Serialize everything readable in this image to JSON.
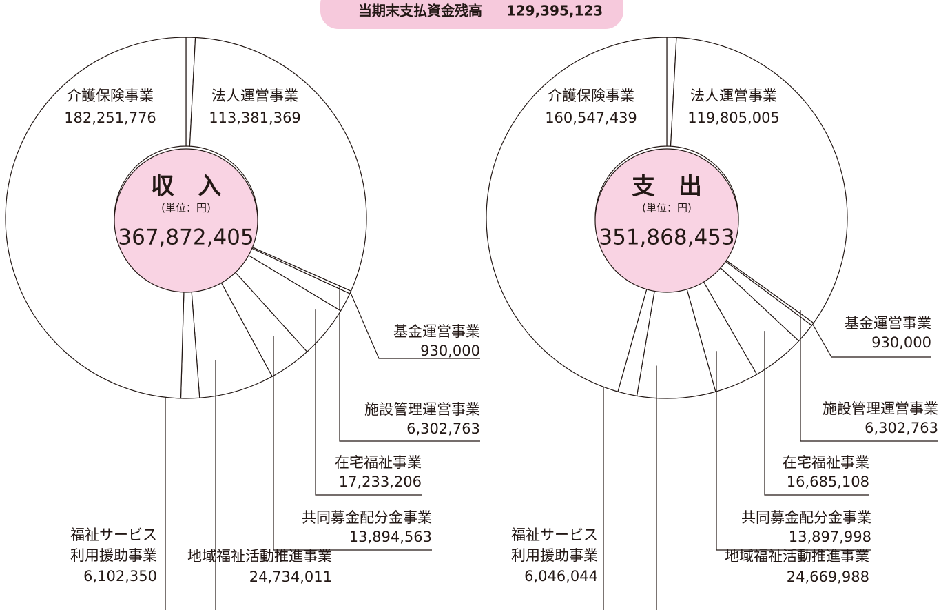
{
  "balance": {
    "label": "当期末支払資金残高",
    "value": "129,395,123"
  },
  "chart_data": [
    {
      "type": "donut",
      "title": "収　入",
      "unit": "(単位：円)",
      "total": "367,872,405",
      "categories": [
        null,
        "法人運営事業",
        "基金運営事業",
        "施設管理運営事業",
        "在宅福祉事業",
        "共同募金配分金事業",
        "地域福祉活動推進事業",
        "福祉サービス利用援助事業",
        "介護保険事業"
      ],
      "values": [
        3042367,
        113381369,
        930000,
        6302763,
        17233206,
        13894563,
        24734011,
        6102350,
        182251776
      ],
      "value_labels": [
        null,
        "113,381,369",
        "930,000",
        "6,302,763",
        "17,233,206",
        "13,894,563",
        "24,734,011",
        "6,102,350",
        "182,251,776"
      ]
    },
    {
      "type": "donut",
      "title": "支　出",
      "unit": "(単位：円)",
      "total": "351,868,453",
      "categories": [
        null,
        "法人運営事業",
        "基金運営事業",
        "施設管理運営事業",
        "在宅福祉事業",
        "共同募金配分金事業",
        "地域福祉活動推進事業",
        "福祉サービス利用援助事業",
        "介護保険事業"
      ],
      "values": [
        2984108,
        119805005,
        930000,
        6302763,
        16685108,
        13897998,
        24669988,
        6046044,
        160547439
      ],
      "value_labels": [
        null,
        "119,805,005",
        "930,000",
        "6,302,763",
        "16,685,108",
        "13,897,998",
        "24,669,988",
        "6,046,044",
        "160,547,439"
      ]
    }
  ]
}
